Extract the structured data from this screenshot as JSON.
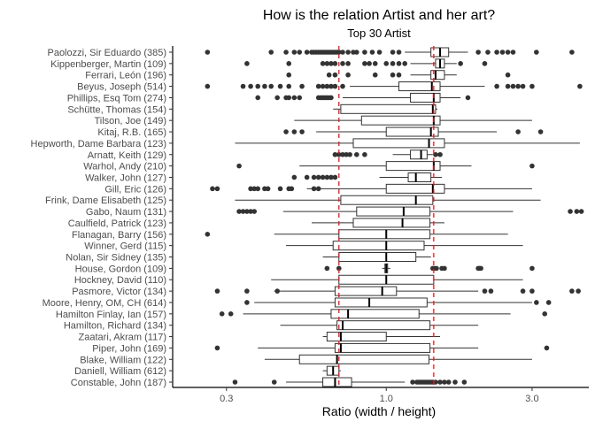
{
  "chart_data": {
    "type": "boxplot",
    "orientation": "horizontal",
    "title": "How is the relation Artist and her art?",
    "subtitle": "Top 30 Artist",
    "xlabel": "Ratio (width / height)",
    "ylabel": "",
    "x_scale": "log10",
    "xlim": [
      0.2,
      4.6
    ],
    "x_ticks": [
      0.3,
      1.0,
      3.0
    ],
    "x_tick_labels": [
      "0.3",
      "1.0",
      "3.0"
    ],
    "grid": false,
    "reference_lines": [
      {
        "value": 0.7,
        "style": "dashed",
        "color": "#e31a1c"
      },
      {
        "value": 1.43,
        "style": "dashed",
        "color": "#e31a1c"
      }
    ],
    "colors": {
      "box_stroke": "#333333",
      "box_fill": "#ffffff",
      "outlier": "#333333",
      "reference": "#e31a1c"
    },
    "categories": [
      {
        "label": "Paolozzi, Sir Eduardo (385)",
        "min": 1.15,
        "q1": 1.4,
        "median": 1.5,
        "q3": 1.6,
        "max": 1.85,
        "outliers": [
          0.26,
          0.42,
          0.47,
          0.5,
          0.52,
          0.55,
          0.57,
          0.58,
          0.59,
          0.6,
          0.61,
          0.62,
          0.63,
          0.64,
          0.65,
          0.66,
          0.67,
          0.68,
          0.69,
          0.7,
          0.72,
          0.75,
          0.78,
          0.8,
          0.85,
          0.9,
          0.95,
          1.05,
          1.1,
          2.0,
          2.15,
          2.3,
          2.4,
          2.5,
          2.6,
          3.1,
          4.05
        ]
      },
      {
        "label": "Kippenberger, Martin (109)",
        "min": 1.2,
        "q1": 1.45,
        "median": 1.5,
        "q3": 1.55,
        "max": 1.7,
        "outliers": [
          0.35,
          0.48,
          0.62,
          0.64,
          0.66,
          0.68,
          0.72,
          0.75,
          0.85,
          0.88,
          0.92,
          1.0,
          1.05,
          1.1,
          1.15,
          1.75,
          2.1
        ]
      },
      {
        "label": "Ferrari, León (196)",
        "min": 1.2,
        "q1": 1.4,
        "median": 1.45,
        "q3": 1.55,
        "max": 1.7,
        "outliers": [
          0.48,
          0.65,
          0.68,
          0.75,
          0.92,
          1.05,
          1.1,
          2.5
        ]
      },
      {
        "label": "Beyus, Joseph (514)",
        "min": 0.76,
        "q1": 1.1,
        "median": 1.41,
        "q3": 1.5,
        "max": 2.1,
        "outliers": [
          0.26,
          0.34,
          0.36,
          0.38,
          0.4,
          0.42,
          0.45,
          0.48,
          0.53,
          0.6,
          0.62,
          0.64,
          0.66,
          0.68,
          0.72,
          2.3,
          2.5,
          2.6,
          2.7,
          2.8,
          3.0,
          4.3
        ]
      },
      {
        "label": "Phillips, Esq Tom (274)",
        "min": 0.72,
        "q1": 1.2,
        "median": 1.43,
        "q3": 1.5,
        "max": 1.75,
        "outliers": [
          0.38,
          0.44,
          0.47,
          0.48,
          0.5,
          0.52,
          0.6,
          0.61,
          0.62,
          0.63,
          0.64,
          0.65,
          0.66,
          1.85
        ]
      },
      {
        "label": "Schütte, Thomas (154)",
        "min": 0.67,
        "q1": 0.71,
        "median": 1.42,
        "q3": 1.45,
        "max": 1.47,
        "outliers": []
      },
      {
        "label": "Tilson, Joe (149)",
        "min": 0.5,
        "q1": 0.83,
        "median": 1.43,
        "q3": 1.5,
        "max": 3.0,
        "outliers": []
      },
      {
        "label": "Kitaj, R.B. (165)",
        "min": 0.59,
        "q1": 1.0,
        "median": 1.4,
        "q3": 1.48,
        "max": 2.3,
        "outliers": [
          0.47,
          0.5,
          0.53,
          2.7,
          3.2
        ]
      },
      {
        "label": "Hepworth, Dame Barbara (123)",
        "min": 0.32,
        "q1": 0.78,
        "median": 1.38,
        "q3": 1.55,
        "max": 4.3,
        "outliers": []
      },
      {
        "label": "Arnatt, Keith (129)",
        "min": 1.05,
        "q1": 1.2,
        "median": 1.3,
        "q3": 1.36,
        "max": 1.42,
        "outliers": [
          0.68,
          0.7,
          0.72,
          0.74,
          0.76,
          0.8,
          0.85,
          1.45,
          1.5
        ]
      },
      {
        "label": "Warhol, Andy (210)",
        "min": 0.52,
        "q1": 1.0,
        "median": 1.43,
        "q3": 1.5,
        "max": 1.9,
        "outliers": [
          0.33,
          3.0
        ]
      },
      {
        "label": "Walker, John (127)",
        "min": 0.95,
        "q1": 1.18,
        "median": 1.25,
        "q3": 1.4,
        "max": 1.52,
        "outliers": [
          0.5,
          0.55,
          0.58,
          0.6,
          0.62,
          0.64,
          0.66,
          0.68
        ]
      },
      {
        "label": "Gill, Eric (126)",
        "min": 0.55,
        "q1": 1.0,
        "median": 1.42,
        "q3": 1.55,
        "max": 3.0,
        "outliers": [
          0.27,
          0.28,
          0.36,
          0.37,
          0.38,
          0.4,
          0.41,
          0.45,
          0.48,
          0.49,
          0.58,
          0.6
        ]
      },
      {
        "label": "Frink, Dame Elisabeth (125)",
        "min": 0.32,
        "q1": 0.71,
        "median": 1.25,
        "q3": 1.42,
        "max": 3.2,
        "outliers": []
      },
      {
        "label": "Gabo, Naum (131)",
        "min": 0.46,
        "q1": 0.8,
        "median": 1.14,
        "q3": 1.39,
        "max": 2.6,
        "outliers": [
          0.33,
          0.34,
          0.35,
          0.36,
          0.37,
          4.0,
          4.2,
          4.35
        ]
      },
      {
        "label": "Caulfield, Patrick (123)",
        "min": 0.57,
        "q1": 0.78,
        "median": 1.13,
        "q3": 1.39,
        "max": 1.55,
        "outliers": []
      },
      {
        "label": "Flanagan, Barry (156)",
        "min": 0.43,
        "q1": 0.7,
        "median": 1.0,
        "q3": 1.39,
        "max": 2.5,
        "outliers": [
          0.26
        ]
      },
      {
        "label": "Winner, Gerd (115)",
        "min": 0.47,
        "q1": 0.67,
        "median": 1.0,
        "q3": 1.33,
        "max": 2.8,
        "outliers": []
      },
      {
        "label": "Nolan, Sir Sidney (135)",
        "min": 0.62,
        "q1": 0.7,
        "median": 1.0,
        "q3": 1.25,
        "max": 1.4,
        "outliers": []
      },
      {
        "label": "House, Gordon (109)",
        "min": 0.97,
        "q1": 0.99,
        "median": 1.0,
        "q3": 1.01,
        "max": 1.03,
        "outliers": [
          0.64,
          0.7,
          1.42,
          1.44,
          1.46,
          1.52,
          1.55,
          2.0,
          2.02,
          2.04,
          3.0
        ]
      },
      {
        "label": "Hockney, David (110)",
        "min": 0.42,
        "q1": 0.7,
        "median": 1.0,
        "q3": 1.43,
        "max": 2.8,
        "outliers": []
      },
      {
        "label": "Pasmore, Victor (134)",
        "min": 0.43,
        "q1": 0.68,
        "median": 0.97,
        "q3": 1.08,
        "max": 2.0,
        "outliers": [
          0.28,
          0.35,
          0.44,
          2.1,
          2.2,
          2.8,
          3.0,
          4.05,
          4.25
        ]
      },
      {
        "label": "Moore, Henry, OM, CH (614)",
        "min": 0.37,
        "q1": 0.68,
        "median": 0.88,
        "q3": 1.36,
        "max": 3.0,
        "outliers": [
          0.35,
          3.1,
          3.4
        ]
      },
      {
        "label": "Hamilton Finlay, Ian (157)",
        "min": 0.34,
        "q1": 0.66,
        "median": 0.75,
        "q3": 1.28,
        "max": 2.55,
        "outliers": [
          0.29,
          0.31,
          3.3
        ]
      },
      {
        "label": "Hamilton, Richard (134)",
        "min": 0.45,
        "q1": 0.69,
        "median": 0.72,
        "q3": 1.39,
        "max": 2.0,
        "outliers": []
      },
      {
        "label": "Zaatari, Akram (117)",
        "min": 0.62,
        "q1": 0.64,
        "median": 0.71,
        "q3": 1.0,
        "max": 1.5,
        "outliers": []
      },
      {
        "label": "Piper, John (169)",
        "min": 0.38,
        "q1": 0.68,
        "median": 0.71,
        "q3": 1.39,
        "max": 2.0,
        "outliers": [
          0.28,
          3.35
        ]
      },
      {
        "label": "Blake, William (122)",
        "min": 0.4,
        "q1": 0.52,
        "median": 0.69,
        "q3": 1.38,
        "max": 3.0,
        "outliers": []
      },
      {
        "label": "Daniell, William (612)",
        "min": 0.62,
        "q1": 0.64,
        "median": 0.67,
        "q3": 0.7,
        "max": 0.71,
        "outliers": []
      },
      {
        "label": "Constable, John (187)",
        "min": 0.47,
        "q1": 0.62,
        "median": 0.68,
        "q3": 0.77,
        "max": 1.15,
        "outliers": [
          0.32,
          0.43,
          1.22,
          1.26,
          1.28,
          1.3,
          1.32,
          1.34,
          1.36,
          1.38,
          1.4,
          1.42,
          1.45,
          1.5,
          1.55,
          1.6,
          1.68,
          1.8
        ]
      }
    ]
  }
}
